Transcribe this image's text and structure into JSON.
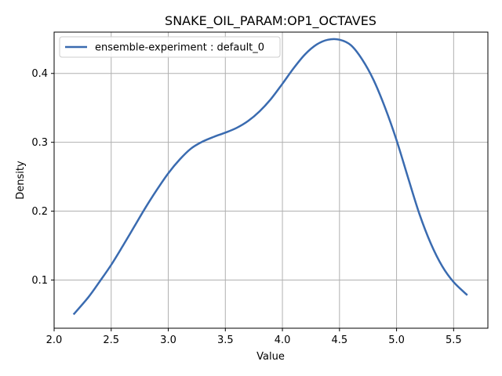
{
  "chart_data": {
    "type": "line",
    "title": "SNAKE_OIL_PARAM:OP1_OCTAVES",
    "xlabel": "Value",
    "ylabel": "Density",
    "xlim": [
      2.0,
      5.8
    ],
    "ylim": [
      0.03,
      0.46
    ],
    "xticks": [
      2.0,
      2.5,
      3.0,
      3.5,
      4.0,
      4.5,
      5.0,
      5.5
    ],
    "xtick_labels": [
      "2.0",
      "2.5",
      "3.0",
      "3.5",
      "4.0",
      "4.5",
      "5.0",
      "5.5"
    ],
    "yticks": [
      0.1,
      0.2,
      0.3,
      0.4
    ],
    "ytick_labels": [
      "0.1",
      "0.2",
      "0.3",
      "0.4"
    ],
    "grid": true,
    "legend_position": "upper-left",
    "colors": {
      "series": "#3a6bb0",
      "axis": "#000000",
      "grid": "#b0b0b0"
    },
    "series": [
      {
        "name": "ensemble-experiment : default_0",
        "x": [
          2.17,
          2.3,
          2.4,
          2.5,
          2.6,
          2.7,
          2.8,
          2.9,
          3.0,
          3.1,
          3.2,
          3.3,
          3.4,
          3.5,
          3.6,
          3.7,
          3.8,
          3.9,
          4.0,
          4.1,
          4.2,
          4.3,
          4.4,
          4.5,
          4.6,
          4.7,
          4.8,
          4.9,
          5.0,
          5.1,
          5.2,
          5.3,
          5.4,
          5.5,
          5.62
        ],
        "y": [
          0.05,
          0.075,
          0.098,
          0.122,
          0.149,
          0.177,
          0.205,
          0.231,
          0.255,
          0.275,
          0.291,
          0.301,
          0.308,
          0.314,
          0.321,
          0.331,
          0.345,
          0.363,
          0.385,
          0.408,
          0.428,
          0.442,
          0.449,
          0.449,
          0.441,
          0.42,
          0.39,
          0.35,
          0.303,
          0.249,
          0.196,
          0.153,
          0.12,
          0.097,
          0.078
        ]
      }
    ]
  }
}
